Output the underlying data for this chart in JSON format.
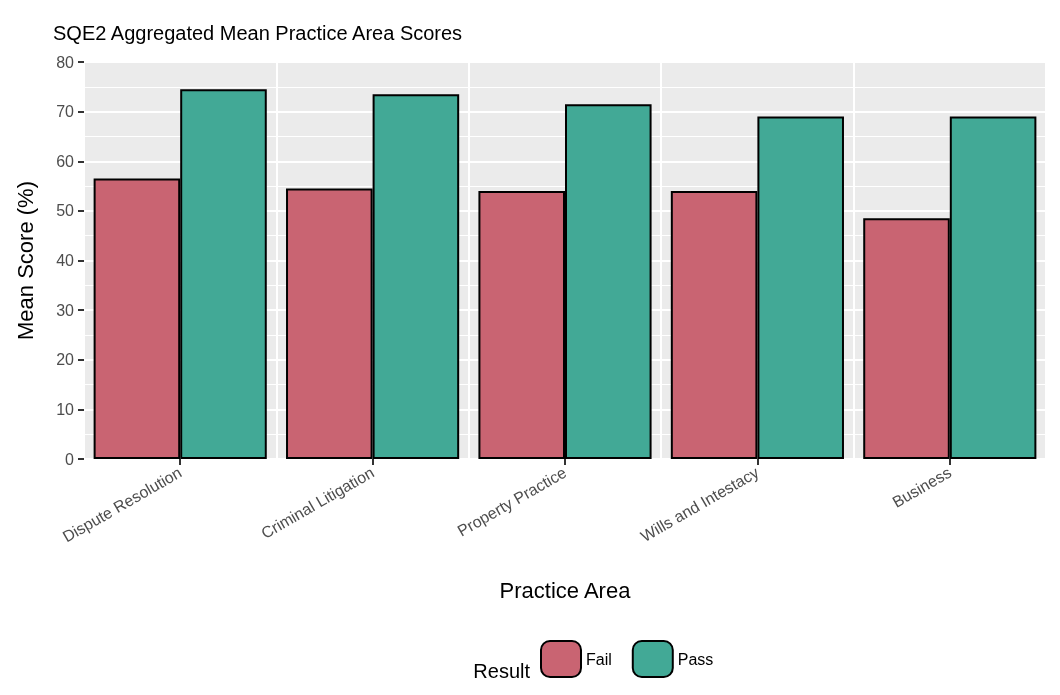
{
  "chart_data": {
    "type": "bar",
    "title": "SQE2 Aggregated Mean Practice Area Scores",
    "xlabel": "Practice Area",
    "ylabel": "Mean Score (%)",
    "legend_title": "Result",
    "categories": [
      "Dispute Resolution",
      "Criminal Litigation",
      "Property Practice",
      "Wills and Intestacy",
      "Business"
    ],
    "series": [
      {
        "name": "Fail",
        "color": "#c96472",
        "values": [
          56.5,
          54.5,
          54,
          54,
          48.5
        ]
      },
      {
        "name": "Pass",
        "color": "#42a996",
        "values": [
          74.5,
          73.5,
          71.5,
          69,
          69
        ]
      }
    ],
    "ylim": [
      0,
      80
    ],
    "yticks": [
      0,
      10,
      20,
      30,
      40,
      50,
      60,
      70,
      80
    ],
    "grid": true,
    "legend": "bottom"
  }
}
